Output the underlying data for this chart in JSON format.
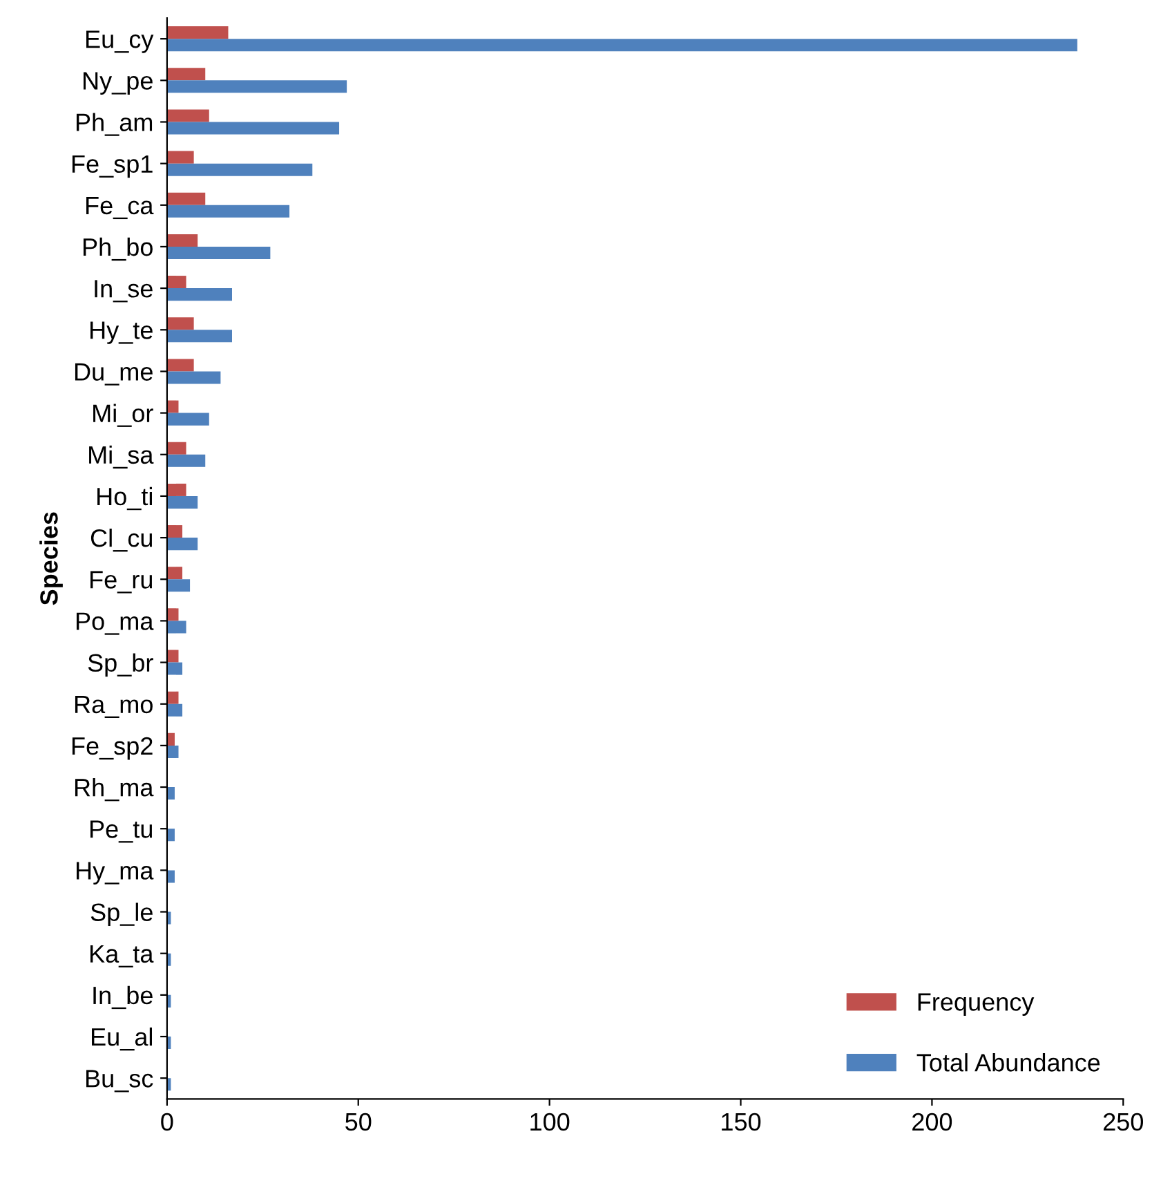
{
  "chart_data": {
    "type": "bar",
    "orientation": "horizontal",
    "ylabel": "Species",
    "categories": [
      "Eu_cy",
      "Ny_pe",
      "Ph_am",
      "Fe_sp1",
      "Fe_ca",
      "Ph_bo",
      "In_se",
      "Hy_te",
      "Du_me",
      "Mi_or",
      "Mi_sa",
      "Ho_ti",
      "Cl_cu",
      "Fe_ru",
      "Po_ma",
      "Sp_br",
      "Ra_mo",
      "Fe_sp2",
      "Rh_ma",
      "Pe_tu",
      "Hy_ma",
      "Sp_le",
      "Ka_ta",
      "In_be",
      "Eu_al",
      "Bu_sc"
    ],
    "series": [
      {
        "name": "Frequency",
        "color": "#c0504d",
        "values": [
          16,
          10,
          11,
          7,
          10,
          8,
          5,
          7,
          7,
          3,
          5,
          5,
          4,
          4,
          3,
          3,
          3,
          2,
          0,
          0,
          0,
          0,
          0,
          0,
          0,
          0
        ]
      },
      {
        "name": "Total Abundance",
        "color": "#4f81bd",
        "values": [
          238,
          47,
          45,
          38,
          32,
          27,
          17,
          17,
          14,
          11,
          10,
          8,
          8,
          6,
          5,
          4,
          4,
          3,
          2,
          2,
          2,
          1,
          1,
          1,
          1,
          1
        ]
      }
    ],
    "xlim": [
      0,
      250
    ],
    "xticks": [
      0,
      50,
      100,
      150,
      200,
      250
    ],
    "grid": false,
    "legend": "bottom right"
  }
}
